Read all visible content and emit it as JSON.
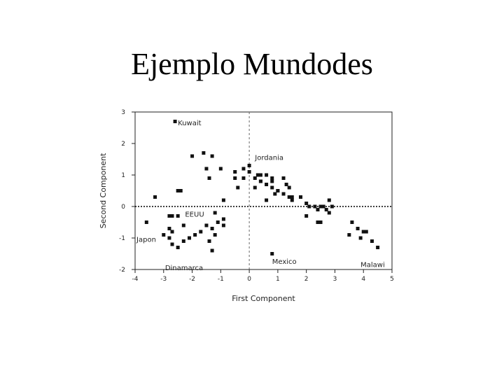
{
  "slide": {
    "title": "Ejemplo Mundodes"
  },
  "chart_data": {
    "type": "scatter",
    "xlabel": "First Component",
    "ylabel": "Second Component",
    "xlim": [
      -4,
      5
    ],
    "ylim": [
      -2,
      3
    ],
    "xticks": [
      -4,
      -3,
      -2,
      -1,
      0,
      1,
      2,
      3,
      4,
      5
    ],
    "yticks": [
      -2,
      -1,
      0,
      1,
      2,
      3
    ],
    "grid": false,
    "reference_lines": {
      "y0": "dotted",
      "x0": "dashed"
    },
    "points": [
      [
        -2.6,
        2.7
      ],
      [
        -2.0,
        1.6
      ],
      [
        -1.6,
        1.7
      ],
      [
        -1.3,
        1.6
      ],
      [
        -1.5,
        1.2
      ],
      [
        -1.0,
        1.2
      ],
      [
        -1.4,
        0.9
      ],
      [
        -0.5,
        1.1
      ],
      [
        -0.2,
        1.2
      ],
      [
        0.0,
        1.3
      ],
      [
        0.0,
        1.1
      ],
      [
        -0.5,
        0.9
      ],
      [
        -0.4,
        0.6
      ],
      [
        -0.9,
        0.2
      ],
      [
        -2.5,
        0.5
      ],
      [
        -2.4,
        0.5
      ],
      [
        -3.3,
        0.3
      ],
      [
        -3.6,
        -0.5
      ],
      [
        -2.8,
        -0.3
      ],
      [
        -2.7,
        -0.3
      ],
      [
        -2.5,
        -0.3
      ],
      [
        -2.3,
        -0.6
      ],
      [
        -2.8,
        -0.7
      ],
      [
        -2.7,
        -0.8
      ],
      [
        -3.0,
        -0.9
      ],
      [
        -2.8,
        -1.0
      ],
      [
        -2.7,
        -1.2
      ],
      [
        -2.5,
        -1.3
      ],
      [
        -2.3,
        -1.1
      ],
      [
        -2.1,
        -1.0
      ],
      [
        -1.9,
        -0.9
      ],
      [
        -1.7,
        -0.8
      ],
      [
        -1.4,
        -1.1
      ],
      [
        -1.3,
        -1.4
      ],
      [
        -1.2,
        -0.9
      ],
      [
        -1.5,
        -0.6
      ],
      [
        -1.3,
        -0.7
      ],
      [
        -1.1,
        -0.5
      ],
      [
        -0.9,
        -0.6
      ],
      [
        -0.9,
        -0.4
      ],
      [
        -1.2,
        -0.2
      ],
      [
        -0.2,
        0.9
      ],
      [
        0.2,
        0.9
      ],
      [
        0.3,
        1.0
      ],
      [
        0.4,
        1.0
      ],
      [
        0.6,
        1.0
      ],
      [
        0.8,
        0.9
      ],
      [
        1.2,
        0.9
      ],
      [
        0.4,
        0.8
      ],
      [
        0.6,
        0.7
      ],
      [
        0.8,
        0.6
      ],
      [
        1.0,
        0.5
      ],
      [
        0.9,
        0.4
      ],
      [
        1.3,
        0.7
      ],
      [
        1.4,
        0.6
      ],
      [
        1.2,
        0.4
      ],
      [
        1.4,
        0.3
      ],
      [
        1.5,
        0.2
      ],
      [
        1.5,
        0.3
      ],
      [
        1.8,
        0.3
      ],
      [
        2.0,
        0.1
      ],
      [
        2.1,
        0.0
      ],
      [
        2.3,
        0.0
      ],
      [
        2.4,
        -0.1
      ],
      [
        2.5,
        0.0
      ],
      [
        2.0,
        -0.3
      ],
      [
        2.4,
        -0.5
      ],
      [
        2.5,
        -0.5
      ],
      [
        2.7,
        -0.1
      ],
      [
        2.8,
        -0.2
      ],
      [
        2.9,
        0.0
      ],
      [
        2.8,
        0.2
      ],
      [
        2.6,
        0.0
      ],
      [
        3.5,
        -0.9
      ],
      [
        3.6,
        -0.5
      ],
      [
        3.8,
        -0.7
      ],
      [
        4.0,
        -0.8
      ],
      [
        4.1,
        -0.8
      ],
      [
        4.3,
        -1.1
      ],
      [
        4.5,
        -1.3
      ],
      [
        3.9,
        -1.0
      ],
      [
        0.8,
        -1.5
      ],
      [
        0.6,
        0.2
      ],
      [
        0.2,
        0.6
      ],
      [
        0.4,
        0.8
      ],
      [
        0.8,
        0.8
      ],
      [
        1.0,
        0.5
      ]
    ],
    "labels": [
      {
        "text": "Kuwait",
        "x": -2.5,
        "y": 2.65
      },
      {
        "text": "Jordania",
        "x": 0.2,
        "y": 1.55
      },
      {
        "text": "EEUU",
        "x": -2.25,
        "y": -0.25
      },
      {
        "text": "Japon",
        "x": -3.95,
        "y": -1.05
      },
      {
        "text": "Dinamarca",
        "x": -2.95,
        "y": -1.95
      },
      {
        "text": "Mexico",
        "x": 0.8,
        "y": -1.75
      },
      {
        "text": "Malawi",
        "x": 3.9,
        "y": -1.85
      }
    ]
  }
}
